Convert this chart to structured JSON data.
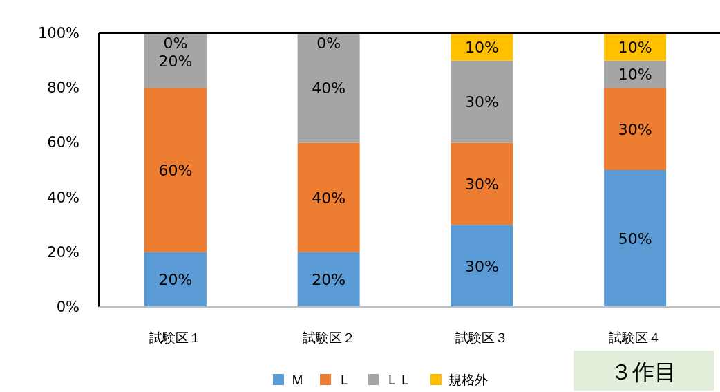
{
  "chart_data": {
    "type": "bar",
    "stacked": true,
    "categories": [
      "試験区１",
      "試験区２",
      "試験区３",
      "試験区４"
    ],
    "series": [
      {
        "name": "Ｍ",
        "color": "#5b9bd5",
        "values": [
          20,
          20,
          30,
          50
        ],
        "value_labels": [
          "20%",
          "20%",
          "30%",
          "50%"
        ]
      },
      {
        "name": "Ｌ",
        "color": "#ed7d31",
        "values": [
          60,
          40,
          30,
          30
        ],
        "value_labels": [
          "60%",
          "40%",
          "30%",
          "30%"
        ]
      },
      {
        "name": "ＬＬ",
        "color": "#a5a5a5",
        "values": [
          20,
          40,
          30,
          10
        ],
        "value_labels": [
          "20%",
          "40%",
          "30%",
          "10%"
        ]
      },
      {
        "name": "規格外",
        "color": "#ffc000",
        "values": [
          0,
          0,
          10,
          10
        ],
        "value_labels": [
          "0%",
          "0%",
          "10%",
          "10%"
        ]
      }
    ],
    "ylim": [
      0,
      100
    ],
    "yticks": [
      {
        "value": 0,
        "label": "0%"
      },
      {
        "value": 20,
        "label": "20%"
      },
      {
        "value": 40,
        "label": "40%"
      },
      {
        "value": 60,
        "label": "60%"
      },
      {
        "value": 80,
        "label": "80%"
      },
      {
        "value": 100,
        "label": "100%"
      }
    ],
    "grid": false,
    "legend": "bottom",
    "annotations": [
      "３作目"
    ]
  }
}
